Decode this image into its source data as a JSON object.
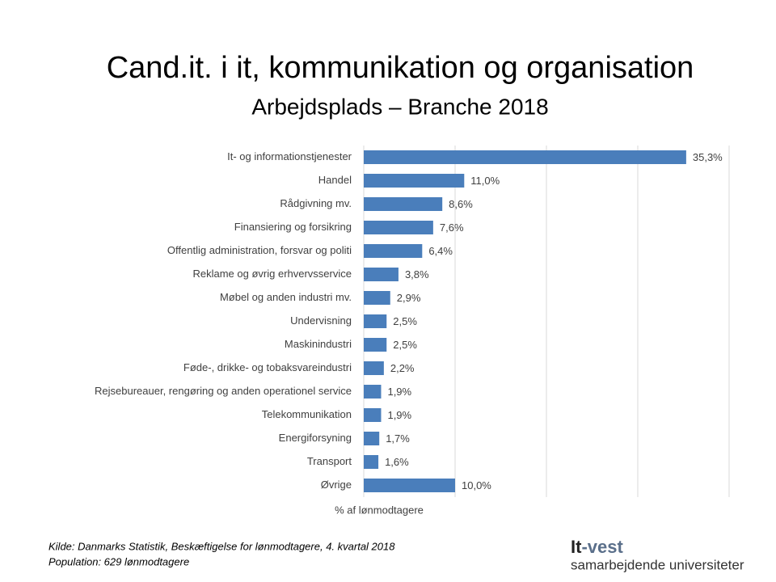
{
  "chart_data": {
    "type": "bar",
    "orientation": "horizontal",
    "title": "Cand.it. i it, kommunikation og organisation",
    "subtitle": "Arbejdsplads – Branche 2018",
    "x_label": "% af lønmodtagere",
    "categories": [
      "It- og informationstjenester",
      "Handel",
      "Rådgivning mv.",
      "Finansiering og forsikring",
      "Offentlig administration, forsvar og politi",
      "Reklame og øvrig erhvervsservice",
      "Møbel og anden industri mv.",
      "Undervisning",
      "Maskinindustri",
      "Føde-, drikke- og tobaksvareindustri",
      "Rejsebureauer, rengøring og anden operationel service",
      "Telekommunikation",
      "Energiforsyning",
      "Transport",
      "Øvrige"
    ],
    "values": [
      35.3,
      11.0,
      8.6,
      7.6,
      6.4,
      3.8,
      2.9,
      2.5,
      2.5,
      2.2,
      1.9,
      1.9,
      1.7,
      1.6,
      10.0
    ],
    "value_labels": [
      "35,3%",
      "11,0%",
      "8,6%",
      "7,6%",
      "6,4%",
      "3,8%",
      "2,9%",
      "2,5%",
      "2,5%",
      "2,2%",
      "1,9%",
      "1,9%",
      "1,7%",
      "1,6%",
      "10,0%"
    ],
    "color": "#4a7ebb",
    "xlim": [
      0,
      40
    ],
    "xticks": [
      0,
      10,
      20,
      30,
      40
    ],
    "grid": true
  },
  "footer": {
    "source": "Kilde: Danmarks Statistik, Beskæftigelse for lønmodtagere, 4. kvartal 2018",
    "population": "Population: 629 lønmodtagere"
  },
  "logo": {
    "name_start": "It",
    "name_end": "-vest",
    "tagline": "samarbejdende universiteter"
  }
}
